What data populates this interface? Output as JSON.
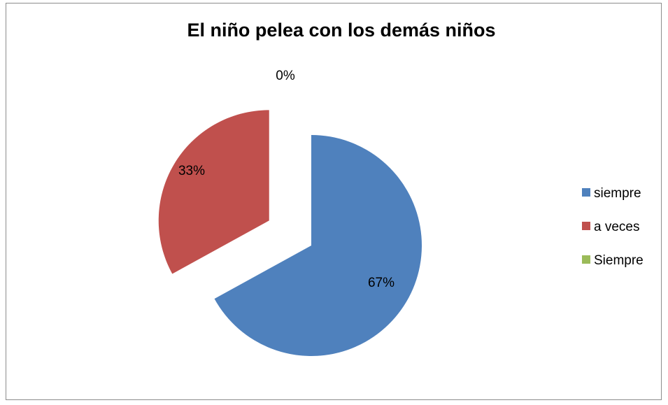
{
  "chart_data": {
    "type": "pie",
    "title": "El niño pelea con los demás niños",
    "categories": [
      "siempre",
      "a veces",
      "Siempre"
    ],
    "values": [
      67,
      33,
      0
    ],
    "data_labels": [
      "67%",
      "33%",
      "0%"
    ],
    "colors": [
      "#4f81bd",
      "#c0504d",
      "#9bbb59"
    ],
    "exploded": true,
    "legend_position": "right"
  }
}
